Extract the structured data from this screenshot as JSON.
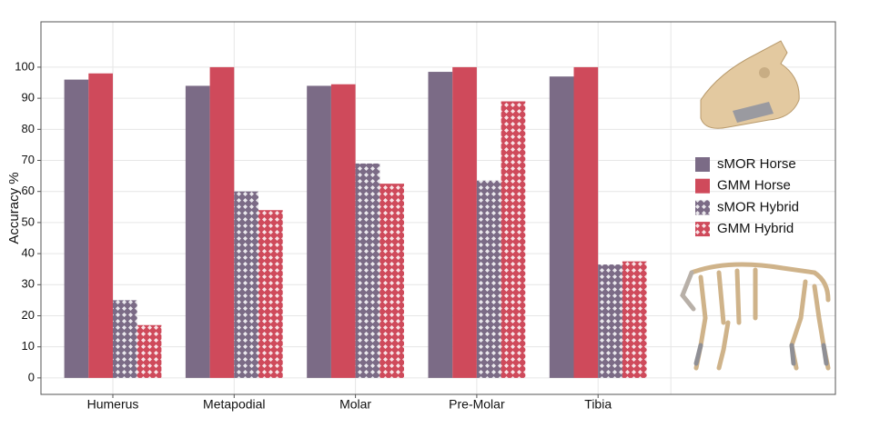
{
  "chart_data": {
    "type": "bar",
    "y_label": "Accuracy %",
    "categories": [
      "Humerus",
      "Metapodial",
      "Molar",
      "Pre-Molar",
      "Tibia"
    ],
    "series": [
      {
        "name": "sMOR Horse",
        "color": "#7b6b86",
        "pattern": "solid",
        "values": [
          96,
          94,
          94,
          98.5,
          97
        ]
      },
      {
        "name": "GMM Horse",
        "color": "#cf4a5b",
        "pattern": "solid",
        "values": [
          98,
          100,
          94.5,
          100,
          100
        ]
      },
      {
        "name": "sMOR Hybrid",
        "color": "#7b6b86",
        "pattern": "dots",
        "values": [
          25,
          60,
          69,
          63.5,
          36.5
        ]
      },
      {
        "name": "GMM Hybrid",
        "color": "#cf4a5b",
        "pattern": "dots",
        "values": [
          17,
          54,
          62.5,
          89,
          37.5
        ]
      }
    ],
    "ylim": [
      -5.3,
      114.6
    ],
    "yticks": [
      0,
      10,
      20,
      30,
      40,
      50,
      60,
      70,
      80,
      90,
      100
    ],
    "grid": true,
    "legend": "right"
  }
}
